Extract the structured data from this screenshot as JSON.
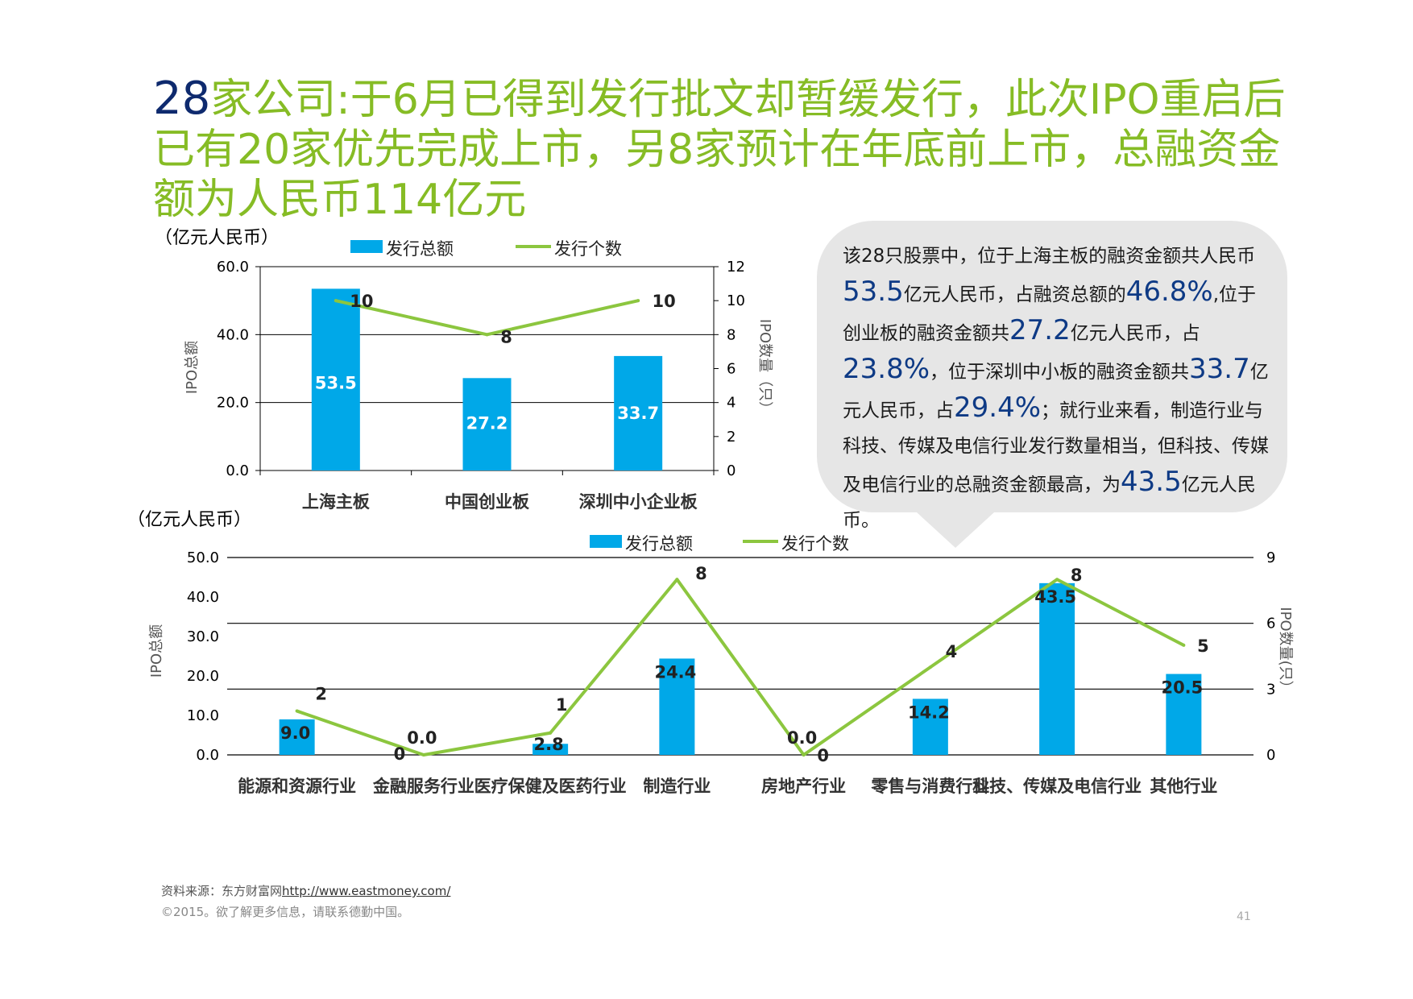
{
  "title": {
    "number": "28",
    "text": "家公司:于6月已得到发行批文却暂缓发行，此次IPO重启后已有20家优先完成上市，另8家预计在年底前上市，总融资金额为人民币114亿元"
  },
  "callout": {
    "parts": [
      {
        "t": "该28只股票中，位于上海主板的融资金额共人民币",
        "hl": false
      },
      {
        "t": "53.5",
        "hl": true
      },
      {
        "t": "亿元人民币，占融资总额的",
        "hl": false
      },
      {
        "t": "46.8%",
        "hl": true
      },
      {
        "t": ",位于创业板的融资金额共",
        "hl": false
      },
      {
        "t": "27.2",
        "hl": true
      },
      {
        "t": "亿元人民币，占",
        "hl": false
      },
      {
        "t": "23.8%",
        "hl": true
      },
      {
        "t": "，位于深圳中小板的融资金额共",
        "hl": false
      },
      {
        "t": "33.7",
        "hl": true
      },
      {
        "t": "亿元人民币，占",
        "hl": false
      },
      {
        "t": "29.4%",
        "hl": true
      },
      {
        "t": "；就行业来看，制造行业与科技、传媒及电信行业发行数量相当，但科技、传媒及电信行业的总融资金额最高，为",
        "hl": false
      },
      {
        "t": "43.5",
        "hl": true
      },
      {
        "t": "亿元人民币。",
        "hl": false
      }
    ]
  },
  "footer": {
    "source_label": "资料来源：东方财富网",
    "source_link": "http://www.eastmoney.com/",
    "copyright": "©2015。欲了解更多信息，请联系德勤中国。",
    "page": "41"
  },
  "colors": {
    "bar": "#00a8e8",
    "line": "#8cc63f",
    "title": "#86bc25",
    "accent": "#0e2a6e"
  },
  "chart_data": [
    {
      "type": "bar",
      "title": "",
      "unit_label": "（亿元人民币）",
      "ylabel": "IPO总额",
      "y2label": "IPO数量（只）",
      "categories": [
        "上海主板",
        "中国创业板",
        "深圳中小企业板"
      ],
      "series": [
        {
          "name": "发行总额",
          "kind": "bar",
          "axis": "left",
          "values": [
            53.5,
            27.2,
            33.7
          ],
          "labels": [
            "53.5",
            "27.2",
            "33.7"
          ]
        },
        {
          "name": "发行个数",
          "kind": "line",
          "axis": "right",
          "values": [
            10,
            8,
            10
          ],
          "labels": [
            "10",
            "8",
            "10"
          ]
        }
      ],
      "ylim": [
        0,
        60
      ],
      "yticks": [
        "0.0",
        "20.0",
        "40.0",
        "60.0"
      ],
      "y2lim": [
        0,
        12
      ],
      "y2ticks": [
        "0",
        "2",
        "4",
        "6",
        "8",
        "10",
        "12"
      ],
      "legend": "top"
    },
    {
      "type": "bar",
      "title": "",
      "unit_label": "（亿元人民币）",
      "ylabel": "IPO总额",
      "y2label": "IPO数量(只）",
      "categories": [
        "能源和资源行业",
        "金融服务行业",
        "医疗保健及医药行业",
        "制造行业",
        "房地产行业",
        "零售与消费行业",
        "科技、传媒及电信行业",
        "其他行业"
      ],
      "series": [
        {
          "name": "发行总额",
          "kind": "bar",
          "axis": "left",
          "values": [
            9.0,
            0.0,
            2.8,
            24.4,
            0.0,
            14.2,
            43.5,
            20.5
          ],
          "labels": [
            "9.0",
            "0.0",
            "2.8",
            "24.4",
            "0.0",
            "14.2",
            "43.5",
            "20.5"
          ]
        },
        {
          "name": "发行个数",
          "kind": "line",
          "axis": "right",
          "values": [
            2,
            0,
            1,
            8,
            0,
            4,
            8,
            5
          ],
          "labels": [
            "2",
            "0",
            "1",
            "8",
            "0",
            "4",
            "8",
            "5"
          ]
        }
      ],
      "ylim": [
        0,
        50
      ],
      "yticks": [
        "0.0",
        "10.0",
        "20.0",
        "30.0",
        "40.0",
        "50.0"
      ],
      "y2lim": [
        0,
        9
      ],
      "y2ticks": [
        "0",
        "3",
        "6",
        "9"
      ],
      "legend": "top"
    }
  ]
}
